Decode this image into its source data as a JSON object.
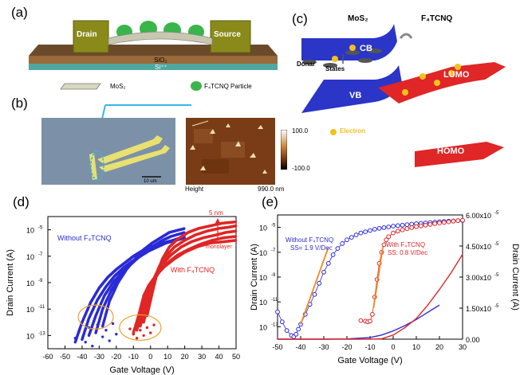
{
  "panels": {
    "a": {
      "label": "(a)",
      "drain": "Drain",
      "source": "Source",
      "sio2": "SiO₂",
      "si": "Si⁺⁺",
      "legend_mos2": "MoS₂",
      "legend_particle": "F₄TCNQ Particle"
    },
    "b": {
      "label": "(b)",
      "scalebar": "10 um",
      "colorbar_max": "100.0",
      "colorbar_min": "-100.0",
      "height_label": "Height",
      "nm_label": "990.0 nm"
    },
    "c": {
      "label": "(c)",
      "mos2": "MoS₂",
      "f4tcnq": "F₄TCNQ",
      "cb": "CB",
      "vb": "VB",
      "lumo": "LUMO",
      "homo": "HOMO",
      "donar": "Donar",
      "states": "States",
      "electron": "Electron"
    },
    "d": {
      "label": "(d)",
      "without": "Without F₄TCNQ",
      "with": "With F₄TCNQ",
      "arrow_top": "5 nm",
      "arrow_bottom": "monolayer"
    },
    "e": {
      "label": "(e)",
      "without": "Without F₄TCNQ",
      "without_ss": "SS= 1.9 V/Dec",
      "with": "With F₄TCNQ",
      "with_ss": "SS: 0.8 V/Dec"
    }
  },
  "chart_data": [
    {
      "id": "d",
      "type": "scatter",
      "xlabel": "Gate Voltage (V)",
      "ylabel": "Drain Current (A)",
      "xlim": [
        -60,
        50
      ],
      "ylim_log10": [
        -14,
        -4
      ],
      "scale_y": "log",
      "x_ticks": [
        "-60",
        "-50",
        "-40",
        "-30",
        "-20",
        "-10",
        "0",
        "10",
        "20",
        "30",
        "40",
        "50"
      ],
      "y_ticks": [
        "10",
        "10",
        "10",
        "10",
        "10"
      ],
      "y_tick_exps": [
        "-13",
        "-11",
        "-9",
        "-7",
        "-5"
      ],
      "series": [
        {
          "name": "Without F4TCNQ",
          "color": "#2b2bd6",
          "curves": [
            {
              "x": [
                -44,
                -40,
                -35,
                -30,
                -25,
                -20,
                -15,
                -10,
                -5,
                0,
                5,
                10,
                20
              ],
              "log_y": [
                -13.5,
                -12,
                -10.5,
                -9.4,
                -8.6,
                -8,
                -7.5,
                -7,
                -6.6,
                -6.3,
                -6.1,
                -5.9,
                -5.6
              ]
            },
            {
              "x": [
                -40,
                -36,
                -31,
                -26,
                -21,
                -16,
                -11,
                -6,
                -1,
                4,
                9,
                15,
                20
              ],
              "log_y": [
                -13.3,
                -11.7,
                -10.3,
                -9.3,
                -8.5,
                -7.9,
                -7.4,
                -7,
                -6.6,
                -6.3,
                -6,
                -5.8,
                -5.6
              ]
            },
            {
              "x": [
                -36,
                -32,
                -27,
                -22,
                -17,
                -12,
                -7,
                -2,
                3,
                8,
                13,
                20
              ],
              "log_y": [
                -13,
                -11.5,
                -10,
                -9,
                -8.3,
                -7.6,
                -7.1,
                -6.6,
                -6.3,
                -6,
                -5.8,
                -5.5
              ]
            },
            {
              "x": [
                -32,
                -28,
                -23,
                -18,
                -13,
                -8,
                -3,
                2,
                7,
                12,
                20
              ],
              "log_y": [
                -12.8,
                -11,
                -9.6,
                -8.6,
                -7.8,
                -7.2,
                -6.6,
                -6.2,
                -5.8,
                -5.5,
                -5.2
              ]
            },
            {
              "x": [
                -28,
                -24,
                -19,
                -14,
                -9,
                -4,
                1,
                6,
                11,
                20
              ],
              "log_y": [
                -12.3,
                -10.4,
                -9,
                -8,
                -7.2,
                -6.5,
                -6,
                -5.6,
                -5.2,
                -4.9
              ]
            }
          ]
        },
        {
          "name": "With F4TCNQ",
          "color": "#e02626",
          "curves": [
            {
              "x": [
                -10,
                -7,
                -4,
                -1,
                3,
                8,
                14,
                20,
                27,
                35,
                43,
                50
              ],
              "log_y": [
                -12.8,
                -11.5,
                -10,
                -9.2,
                -8.5,
                -7.8,
                -7.2,
                -6.7,
                -6.3,
                -6,
                -5.9,
                -5.8
              ]
            },
            {
              "x": [
                -8,
                -5,
                -2,
                1,
                5,
                10,
                16,
                22,
                29,
                36,
                43,
                50
              ],
              "log_y": [
                -12.6,
                -11.2,
                -9.8,
                -9,
                -8.2,
                -7.5,
                -6.9,
                -6.5,
                -6.1,
                -5.8,
                -5.6,
                -5.5
              ]
            },
            {
              "x": [
                -6,
                -3,
                0,
                3,
                7,
                12,
                18,
                24,
                31,
                38,
                44,
                50
              ],
              "log_y": [
                -12.3,
                -10.8,
                -9.3,
                -8.4,
                -7.6,
                -6.9,
                -6.3,
                -5.9,
                -5.6,
                -5.4,
                -5.2,
                -5.1
              ]
            },
            {
              "x": [
                -4,
                -1,
                2,
                5,
                9,
                14,
                20,
                26,
                33,
                40,
                46,
                50
              ],
              "log_y": [
                -12,
                -10.4,
                -8.8,
                -7.8,
                -7,
                -6.3,
                -5.8,
                -5.4,
                -5.1,
                -4.9,
                -4.8,
                -4.7
              ]
            },
            {
              "x": [
                -2,
                1,
                4,
                7,
                11,
                16,
                22,
                28,
                35,
                42,
                50
              ],
              "log_y": [
                -11.5,
                -9.8,
                -8.2,
                -7.2,
                -6.3,
                -5.7,
                -5.2,
                -4.9,
                -4.7,
                -4.5,
                -4.4
              ]
            }
          ]
        }
      ]
    },
    {
      "id": "e",
      "type": "line",
      "xlabel": "Gate Voltage (V)",
      "ylabel": "Drain Current (A)",
      "ylabel_right": "Drain Current (A)",
      "xlim": [
        -50,
        30
      ],
      "ylim_log10": [
        -14,
        -4
      ],
      "y2lim": [
        0,
        6e-05
      ],
      "x_ticks": [
        "-50",
        "-40",
        "-30",
        "-20",
        "-10",
        "0",
        "10",
        "20",
        "30"
      ],
      "y_ticks": [
        "10",
        "10",
        "10",
        "10",
        "10"
      ],
      "y_tick_exps": [
        "-13",
        "-11",
        "-9",
        "-7",
        "-5"
      ],
      "y2_ticks": [
        "0.00",
        "1.50x10",
        "3.00x10",
        "4.50x10",
        "6.00x10"
      ],
      "y2_tick_exp": "-5",
      "series": [
        {
          "name": "Without F4TCNQ",
          "color": "#2b2bd6",
          "kind": "log-markers",
          "x": [
            -50,
            -48,
            -46,
            -44,
            -43,
            -42,
            -41,
            -40,
            -38,
            -36,
            -34,
            -32,
            -30,
            -28,
            -26,
            -24,
            -22,
            -20,
            -18,
            -16,
            -14,
            -12,
            -10,
            -8,
            -6,
            -4,
            -2,
            0,
            2,
            4,
            6,
            8,
            10,
            12,
            14,
            16,
            18,
            20,
            22,
            24,
            26,
            28,
            30
          ],
          "log_y": [
            -11.8,
            -12.6,
            -13.3,
            -13.7,
            -13.8,
            -13.6,
            -13.2,
            -12.8,
            -12,
            -11.2,
            -10.4,
            -9.5,
            -8.6,
            -7.9,
            -7.2,
            -6.7,
            -6.3,
            -6,
            -5.8,
            -5.6,
            -5.45,
            -5.35,
            -5.25,
            -5.15,
            -5.08,
            -5.02,
            -4.96,
            -4.9,
            -4.86,
            -4.82,
            -4.78,
            -4.74,
            -4.7,
            -4.67,
            -4.64,
            -4.61,
            -4.58,
            -4.55,
            -4.52,
            -4.5,
            -4.48,
            -4.46,
            -4.44
          ]
        },
        {
          "name": "With F4TCNQ",
          "color": "#e02626",
          "kind": "log-markers",
          "x": [
            -14,
            -12,
            -11,
            -10,
            -9,
            -8,
            -7,
            -6,
            -5,
            -4,
            -3,
            -2,
            0,
            2,
            4,
            6,
            8,
            10,
            12,
            14,
            16,
            18,
            20,
            22,
            24,
            26,
            28,
            30
          ],
          "log_y": [
            -12.5,
            -12.55,
            -12.6,
            -12.55,
            -12,
            -10.6,
            -9.2,
            -7.9,
            -7,
            -6.4,
            -6,
            -5.75,
            -5.45,
            -5.3,
            -5.2,
            -5.1,
            -5.02,
            -4.95,
            -4.88,
            -4.82,
            -4.76,
            -4.7,
            -4.65,
            -4.6,
            -4.55,
            -4.5,
            -4.46,
            -4.42
          ]
        },
        {
          "name": "Without F4TCNQ fit",
          "color": "#f08a1c",
          "kind": "log-line",
          "x": [
            -40,
            -28
          ],
          "log_y": [
            -12.8,
            -6.6
          ]
        },
        {
          "name": "With F4TCNQ fit",
          "color": "#f08a1c",
          "kind": "log-line",
          "x": [
            -8.5,
            -4.5
          ],
          "log_y": [
            -11.5,
            -6.6
          ]
        },
        {
          "name": "Without F4TCNQ linear",
          "color": "#2b2bd6",
          "kind": "linear-line",
          "x": [
            -50,
            -30,
            -20,
            -10,
            -5,
            0,
            5,
            10,
            15,
            20
          ],
          "y": [
            0,
            0,
            1e-07,
            8e-07,
            2e-06,
            4e-06,
            6.5e-06,
            9.5e-06,
            1.3e-05,
            1.65e-05
          ]
        },
        {
          "name": "With F4TCNQ linear",
          "color": "#e02626",
          "kind": "linear-line",
          "x": [
            -50,
            -10,
            -5,
            0,
            5,
            10,
            15,
            20,
            25,
            30
          ],
          "y": [
            0,
            0,
            2e-07,
            2e-06,
            5.5e-06,
            1e-05,
            1.65e-05,
            2.4e-05,
            3.2e-05,
            4.1e-05
          ]
        }
      ]
    }
  ]
}
